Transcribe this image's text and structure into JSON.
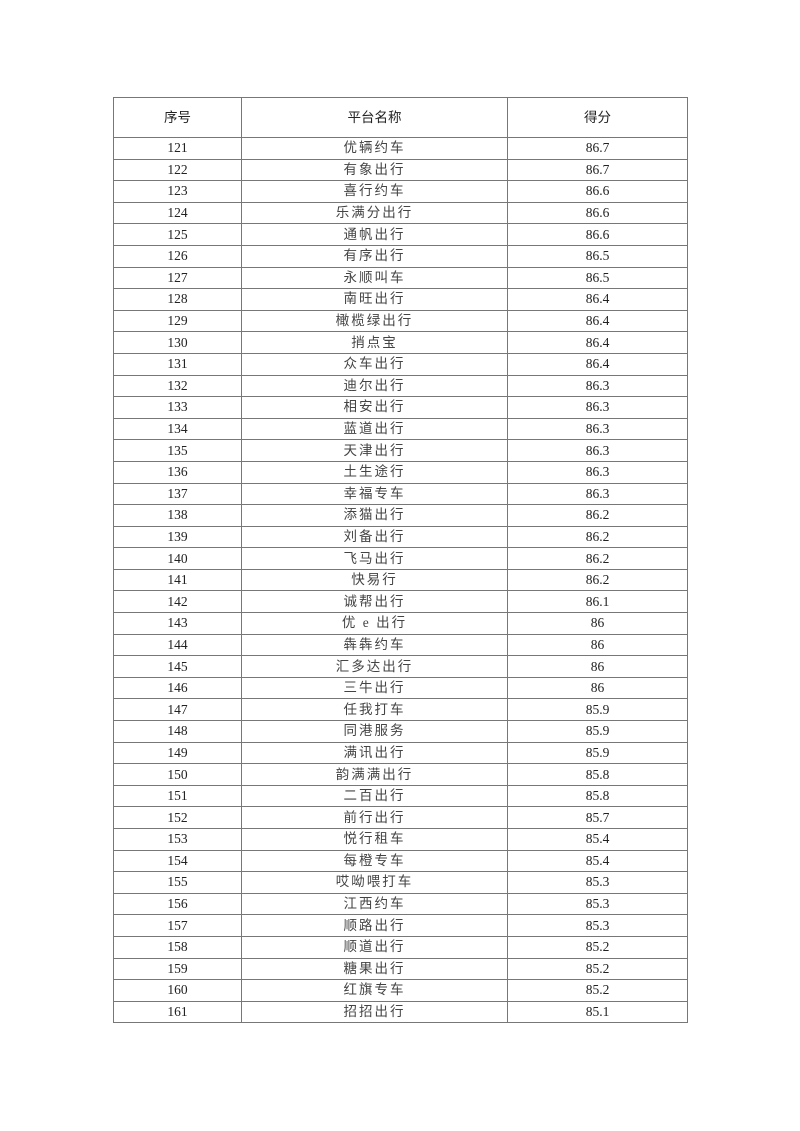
{
  "table": {
    "headers": [
      "序号",
      "平台名称",
      "得分"
    ],
    "rows": [
      [
        "121",
        "优辆约车",
        "86.7"
      ],
      [
        "122",
        "有象出行",
        "86.7"
      ],
      [
        "123",
        "喜行约车",
        "86.6"
      ],
      [
        "124",
        "乐满分出行",
        "86.6"
      ],
      [
        "125",
        "通帆出行",
        "86.6"
      ],
      [
        "126",
        "有序出行",
        "86.5"
      ],
      [
        "127",
        "永顺叫车",
        "86.5"
      ],
      [
        "128",
        "南旺出行",
        "86.4"
      ],
      [
        "129",
        "橄榄绿出行",
        "86.4"
      ],
      [
        "130",
        "捎点宝",
        "86.4"
      ],
      [
        "131",
        "众车出行",
        "86.4"
      ],
      [
        "132",
        "迪尔出行",
        "86.3"
      ],
      [
        "133",
        "相安出行",
        "86.3"
      ],
      [
        "134",
        "蓝道出行",
        "86.3"
      ],
      [
        "135",
        "天津出行",
        "86.3"
      ],
      [
        "136",
        "土生途行",
        "86.3"
      ],
      [
        "137",
        "幸福专车",
        "86.3"
      ],
      [
        "138",
        "添猫出行",
        "86.2"
      ],
      [
        "139",
        "刘备出行",
        "86.2"
      ],
      [
        "140",
        "飞马出行",
        "86.2"
      ],
      [
        "141",
        "快易行",
        "86.2"
      ],
      [
        "142",
        "诚帮出行",
        "86.1"
      ],
      [
        "143",
        "优 e 出行",
        "86"
      ],
      [
        "144",
        "犇犇约车",
        "86"
      ],
      [
        "145",
        "汇多达出行",
        "86"
      ],
      [
        "146",
        "三牛出行",
        "86"
      ],
      [
        "147",
        "任我打车",
        "85.9"
      ],
      [
        "148",
        "同港服务",
        "85.9"
      ],
      [
        "149",
        "满讯出行",
        "85.9"
      ],
      [
        "150",
        "韵满满出行",
        "85.8"
      ],
      [
        "151",
        "二百出行",
        "85.8"
      ],
      [
        "152",
        "前行出行",
        "85.7"
      ],
      [
        "153",
        "悦行租车",
        "85.4"
      ],
      [
        "154",
        "每橙专车",
        "85.4"
      ],
      [
        "155",
        "哎呦喂打车",
        "85.3"
      ],
      [
        "156",
        "江西约车",
        "85.3"
      ],
      [
        "157",
        "顺路出行",
        "85.3"
      ],
      [
        "158",
        "顺道出行",
        "85.2"
      ],
      [
        "159",
        "糖果出行",
        "85.2"
      ],
      [
        "160",
        "红旗专车",
        "85.2"
      ],
      [
        "161",
        "招招出行",
        "85.1"
      ]
    ]
  }
}
